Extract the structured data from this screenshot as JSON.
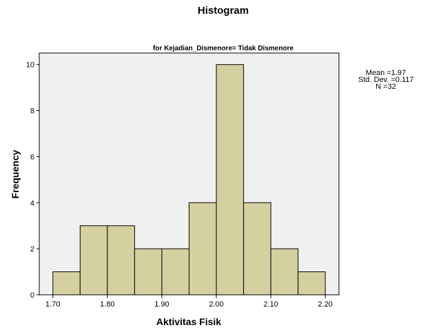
{
  "chart_data": {
    "type": "bar",
    "title": "Histogram",
    "subtitle": "for Kejadian_Dismenore= Tidak Dismenore",
    "xlabel": "Aktivitas Fisik",
    "ylabel": "Frequency",
    "xlim": [
      1.675,
      2.225
    ],
    "ylim": [
      0,
      10.5
    ],
    "x_ticks": [
      "1.70",
      "1.80",
      "1.90",
      "2.00",
      "2.10",
      "2.20"
    ],
    "y_ticks": [
      "0",
      "2",
      "4",
      "6",
      "8",
      "10"
    ],
    "bins": [
      {
        "start": 1.7,
        "end": 1.75,
        "count": 1
      },
      {
        "start": 1.75,
        "end": 1.8,
        "count": 3
      },
      {
        "start": 1.8,
        "end": 1.85,
        "count": 3
      },
      {
        "start": 1.85,
        "end": 1.9,
        "count": 2
      },
      {
        "start": 1.9,
        "end": 1.95,
        "count": 2
      },
      {
        "start": 1.95,
        "end": 2.0,
        "count": 4
      },
      {
        "start": 2.0,
        "end": 2.05,
        "count": 10
      },
      {
        "start": 2.05,
        "end": 2.1,
        "count": 4
      },
      {
        "start": 2.1,
        "end": 2.15,
        "count": 2
      },
      {
        "start": 2.15,
        "end": 2.2,
        "count": 1
      }
    ],
    "bar_color": "#d5d0a0",
    "plot_background": "#f0f0f0",
    "stats": {
      "mean": "Mean =1.97",
      "std_dev": "Std. Dev. =0.117",
      "n": "N =32"
    }
  }
}
